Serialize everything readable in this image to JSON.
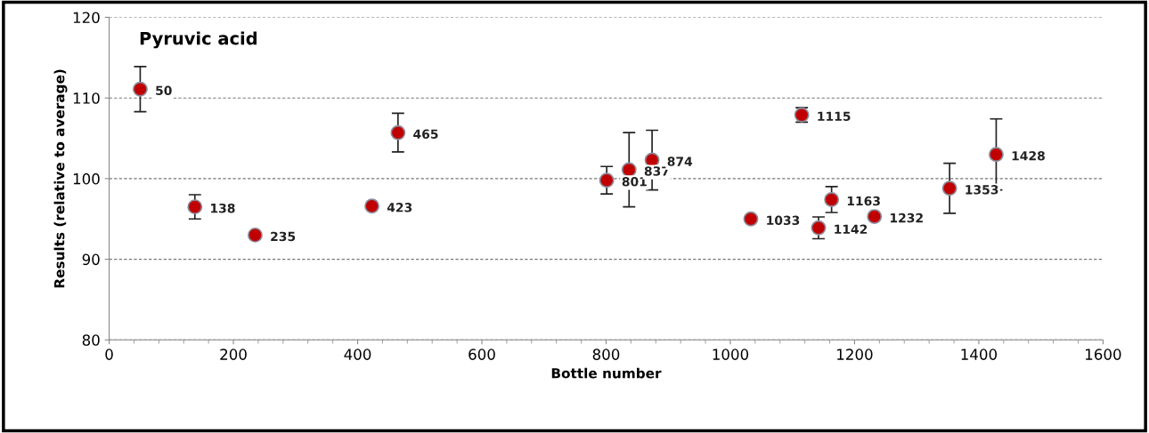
{
  "chart_data": {
    "type": "scatter",
    "title": "Pyruvic acid",
    "xlabel": "Bottle number",
    "ylabel": "Results (relative to average)",
    "x": [
      50,
      138,
      235,
      423,
      465,
      801,
      837,
      874,
      1033,
      1115,
      1142,
      1163,
      1232,
      1353,
      1428
    ],
    "series": [
      {
        "color": "#c00000",
        "values": [
          111.1,
          96.5,
          93.0,
          96.6,
          105.7,
          99.8,
          101.1,
          102.3,
          95.0,
          107.9,
          93.9,
          97.4,
          95.3,
          98.8,
          103.0
        ],
        "errors": [
          2.8,
          1.5,
          null,
          null,
          2.4,
          1.7,
          4.6,
          3.7,
          null,
          0.9,
          1.35,
          1.6,
          null,
          3.1,
          4.4
        ]
      }
    ],
    "annotations": [
      {
        "text": "50",
        "x": 50,
        "y": 111.1
      },
      {
        "text": "138",
        "x": 138,
        "y": 96.5
      },
      {
        "text": "235",
        "x": 235,
        "y": 93.0
      },
      {
        "text": "423",
        "x": 423,
        "y": 96.6
      },
      {
        "text": "465",
        "x": 465,
        "y": 105.7
      },
      {
        "text": "801",
        "x": 801,
        "y": 99.8
      },
      {
        "text": "837",
        "x": 837,
        "y": 101.1
      },
      {
        "text": "874",
        "x": 874,
        "y": 102.3
      },
      {
        "text": "1033",
        "x": 1033,
        "y": 95.0
      },
      {
        "text": "1115",
        "x": 1115,
        "y": 107.9
      },
      {
        "text": "1142",
        "x": 1142,
        "y": 93.9
      },
      {
        "text": "1163",
        "x": 1163,
        "y": 97.4
      },
      {
        "text": "1232",
        "x": 1232,
        "y": 95.3
      },
      {
        "text": "1353",
        "x": 1353,
        "y": 98.8
      },
      {
        "text": "1428",
        "x": 1428,
        "y": 103.0
      }
    ],
    "xlim": [
      0,
      1600
    ],
    "xticks": [
      0,
      200,
      400,
      600,
      800,
      1000,
      1200,
      1400,
      1600
    ],
    "ylim": [
      80,
      120
    ],
    "yticks": [
      80,
      90,
      100,
      110,
      120
    ],
    "grid": "y",
    "marker": "circle"
  }
}
